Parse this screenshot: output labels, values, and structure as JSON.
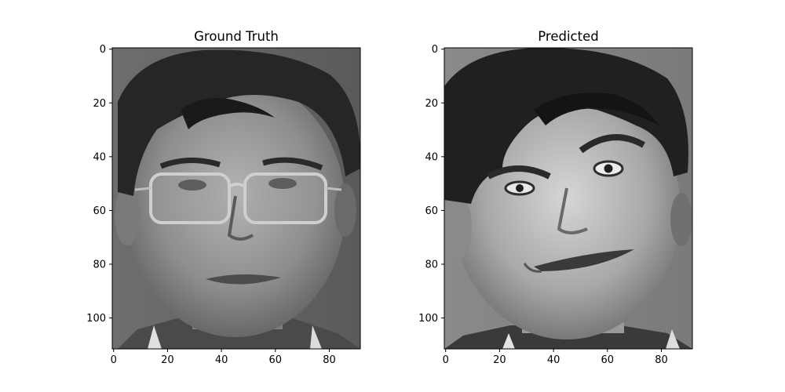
{
  "chart_data": [
    {
      "type": "heatmap",
      "title": "Ground Truth",
      "image": "grayscale face photo, man with glasses, neutral expression",
      "colormap": "gray",
      "xlim": [
        0,
        92
      ],
      "ylim": [
        112,
        0
      ],
      "x_ticks": [
        0,
        20,
        40,
        60,
        80
      ],
      "y_ticks": [
        0,
        20,
        40,
        60,
        80,
        100
      ],
      "x_tick_labels": [
        "0",
        "20",
        "40",
        "60",
        "80"
      ],
      "y_tick_labels": [
        "0",
        "20",
        "40",
        "60",
        "80",
        "100"
      ]
    },
    {
      "type": "heatmap",
      "title": "Predicted",
      "image": "grayscale face photo, man without glasses, raised eyebrow, exaggerated smile",
      "colormap": "gray",
      "xlim": [
        0,
        92
      ],
      "ylim": [
        112,
        0
      ],
      "x_ticks": [
        0,
        20,
        40,
        60,
        80
      ],
      "y_ticks": [
        0,
        20,
        40,
        60,
        80,
        100
      ],
      "x_tick_labels": [
        "0",
        "20",
        "40",
        "60",
        "80"
      ],
      "y_tick_labels": [
        "0",
        "20",
        "40",
        "60",
        "80",
        "100"
      ]
    }
  ]
}
